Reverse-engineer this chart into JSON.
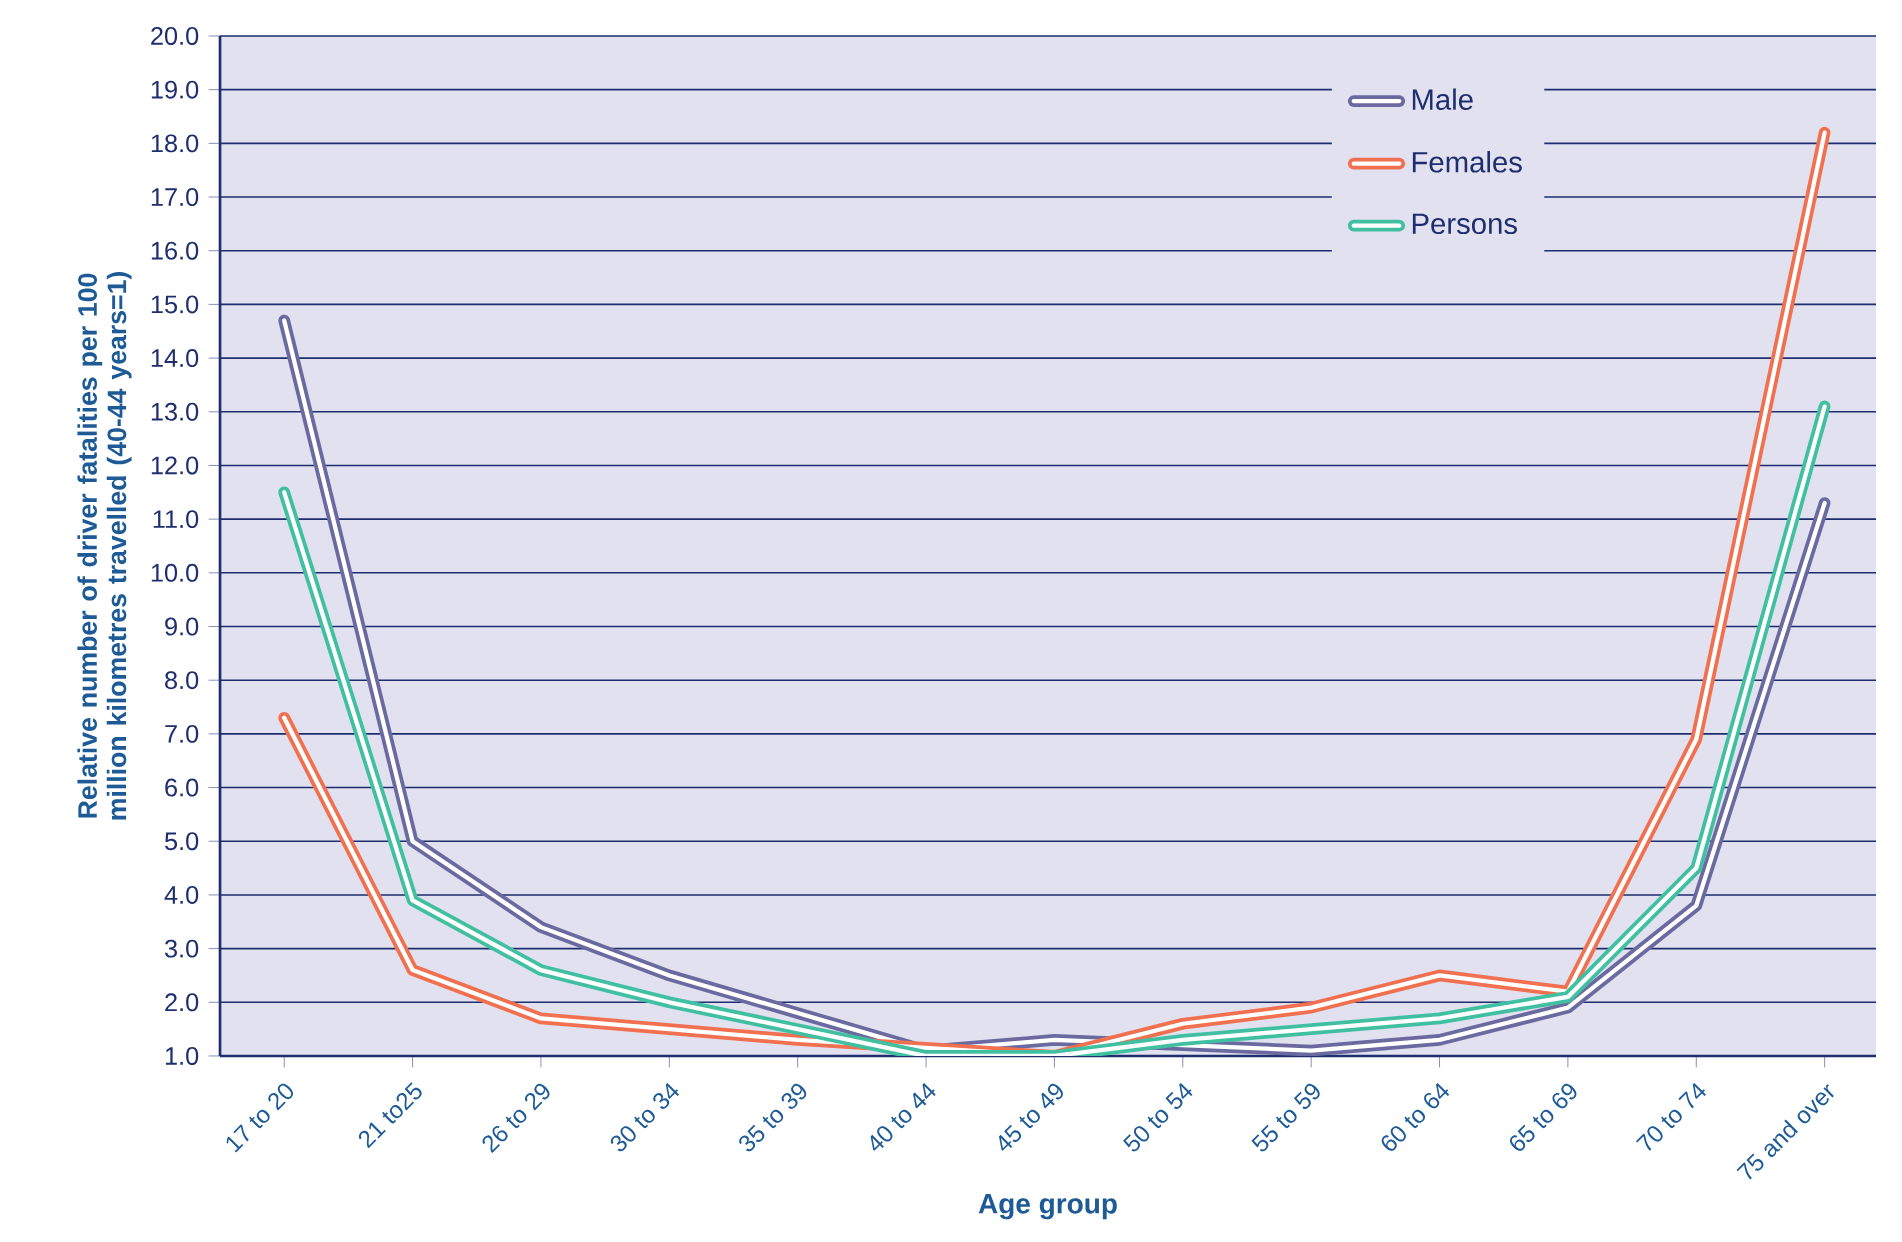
{
  "chart_data": {
    "type": "line",
    "xlabel": "Age group",
    "ylabel": "Relative number of driver fatalities per 100 million kilometres travelled (40-44 years=1)",
    "categories": [
      "17 to 20",
      "21 to25",
      "26 to 29",
      "30 to 34",
      "35 to 39",
      "40 to 44",
      "45 to 49",
      "50 to 54",
      "55 to 59",
      "60 to 64",
      "65 to 69",
      "70 to 74",
      "75 and over"
    ],
    "series": [
      {
        "name": "Male",
        "color": "#6a6aa0",
        "values": [
          14.7,
          5.0,
          3.4,
          2.5,
          1.8,
          1.1,
          1.3,
          1.2,
          1.1,
          1.3,
          1.9,
          3.8,
          11.3
        ]
      },
      {
        "name": "Females",
        "color": "#f07050",
        "values": [
          7.3,
          2.6,
          1.7,
          1.5,
          1.3,
          null,
          1.0,
          1.6,
          1.9,
          2.5,
          2.2,
          6.9,
          18.2
        ]
      },
      {
        "name": "Persons",
        "color": "#40c0a0",
        "values": [
          11.5,
          3.9,
          2.6,
          2.0,
          1.5,
          1.0,
          1.0,
          1.3,
          1.5,
          1.7,
          2.1,
          4.5,
          13.1
        ]
      }
    ],
    "ylim": [
      1,
      20
    ],
    "yticks": [
      {
        "value": 1,
        "label": "1.0"
      },
      {
        "value": 2,
        "label": "2.0"
      },
      {
        "value": 3,
        "label": "3.0"
      },
      {
        "value": 4,
        "label": "4.0"
      },
      {
        "value": 5,
        "label": "5.0"
      },
      {
        "value": 6,
        "label": "6.0"
      },
      {
        "value": 7,
        "label": "7.0"
      },
      {
        "value": 8,
        "label": "8.0"
      },
      {
        "value": 9,
        "label": "9.0"
      },
      {
        "value": 10,
        "label": "10.0"
      },
      {
        "value": 11,
        "label": "11.0"
      },
      {
        "value": 12,
        "label": "12.0"
      },
      {
        "value": 13,
        "label": "13.0"
      },
      {
        "value": 14,
        "label": "14.0"
      },
      {
        "value": 15,
        "label": "15.0"
      },
      {
        "value": 16,
        "label": "16.0"
      },
      {
        "value": 17,
        "label": "17.0"
      },
      {
        "value": 18,
        "label": "18.0"
      },
      {
        "value": 19,
        "label": "19.0"
      },
      {
        "value": 20,
        "label": "20.0"
      }
    ],
    "grid": "y",
    "legend": "top right",
    "marker": "none",
    "line_style": "solid"
  }
}
